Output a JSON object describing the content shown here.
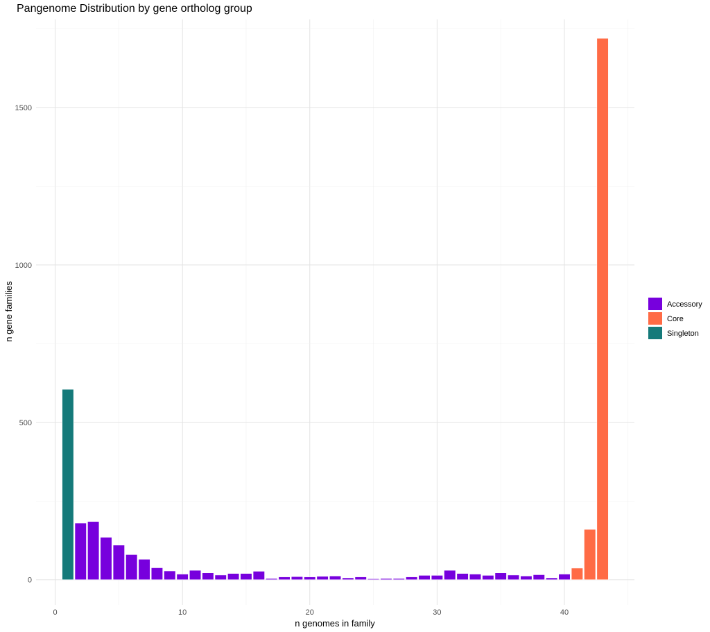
{
  "chart_data": {
    "type": "bar",
    "title": "Pangenome Distribution by gene ortholog group",
    "xlabel": "n genomes in family",
    "ylabel": "n gene families",
    "xlim": [
      -1.5,
      45.5
    ],
    "ylim": [
      -80,
      1780
    ],
    "x_ticks": [
      0,
      10,
      20,
      30,
      40
    ],
    "y_ticks": [
      0,
      500,
      1000,
      1500
    ],
    "grid": true,
    "legend_position": "right",
    "series": [
      {
        "name": "Accessory",
        "color": "#7700DD",
        "x": [
          2,
          3,
          4,
          5,
          6,
          7,
          8,
          9,
          10,
          11,
          12,
          13,
          14,
          15,
          16,
          17,
          18,
          19,
          20,
          21,
          22,
          23,
          24,
          25,
          26,
          27,
          28,
          29,
          30,
          31,
          32,
          33,
          34,
          35,
          36,
          37,
          38,
          39,
          40
        ],
        "values": [
          180,
          185,
          135,
          110,
          80,
          65,
          38,
          28,
          18,
          30,
          22,
          15,
          20,
          20,
          27,
          4,
          9,
          10,
          9,
          11,
          12,
          6,
          9,
          3,
          4,
          4,
          9,
          14,
          14,
          30,
          20,
          18,
          14,
          22,
          15,
          12,
          16,
          6,
          18
        ]
      },
      {
        "name": "Core",
        "color": "#FF6B45",
        "x": [
          41,
          42,
          43
        ],
        "values": [
          37,
          160,
          1720
        ]
      },
      {
        "name": "Singleton",
        "color": "#157A7A",
        "x": [
          1
        ],
        "values": [
          605
        ]
      }
    ]
  }
}
